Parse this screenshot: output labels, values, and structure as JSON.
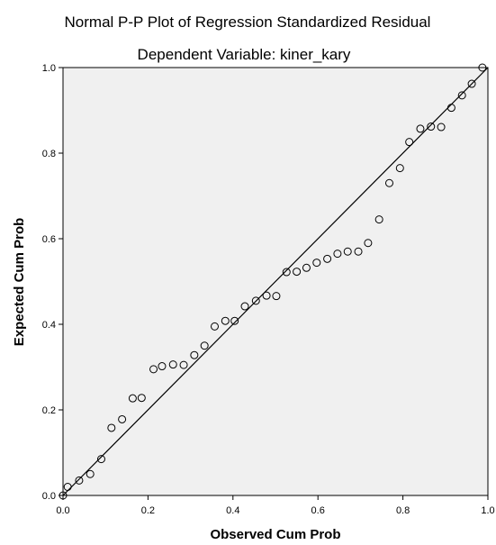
{
  "chart_data": {
    "type": "scatter",
    "title": "Normal P-P Plot of Regression Standardized Residual",
    "subtitle": "Dependent Variable: kiner_kary",
    "xlabel": "Observed Cum Prob",
    "ylabel": "Expected Cum Prob",
    "xlim": [
      0.0,
      1.0
    ],
    "ylim": [
      0.0,
      1.0
    ],
    "x_ticks": [
      "0.0",
      "0.2",
      "0.4",
      "0.6",
      "0.8",
      "1.0"
    ],
    "y_ticks": [
      "0.0",
      "0.2",
      "0.4",
      "0.6",
      "0.8",
      "1.0"
    ],
    "grid": false,
    "reference_line": {
      "from": [
        0.0,
        0.0
      ],
      "to": [
        1.0,
        1.0
      ]
    },
    "plot_background": "#f0f0f0",
    "marker_color": "#000000",
    "line_color": "#000000",
    "x": [
      0.0,
      0.011,
      0.038,
      0.064,
      0.09,
      0.114,
      0.139,
      0.164,
      0.185,
      0.213,
      0.233,
      0.259,
      0.284,
      0.309,
      0.333,
      0.357,
      0.382,
      0.404,
      0.428,
      0.454,
      0.479,
      0.502,
      0.526,
      0.55,
      0.573,
      0.597,
      0.622,
      0.646,
      0.67,
      0.695,
      0.718,
      0.744,
      0.768,
      0.793,
      0.815,
      0.841,
      0.866,
      0.89,
      0.914,
      0.939,
      0.962,
      0.987
    ],
    "y": [
      0.0,
      0.02,
      0.035,
      0.05,
      0.085,
      0.158,
      0.178,
      0.227,
      0.228,
      0.295,
      0.302,
      0.306,
      0.305,
      0.328,
      0.35,
      0.395,
      0.408,
      0.408,
      0.442,
      0.455,
      0.467,
      0.466,
      0.522,
      0.523,
      0.532,
      0.544,
      0.553,
      0.565,
      0.57,
      0.57,
      0.59,
      0.645,
      0.73,
      0.765,
      0.826,
      0.857,
      0.862,
      0.861,
      0.906,
      0.935,
      0.962,
      1.0
    ]
  }
}
